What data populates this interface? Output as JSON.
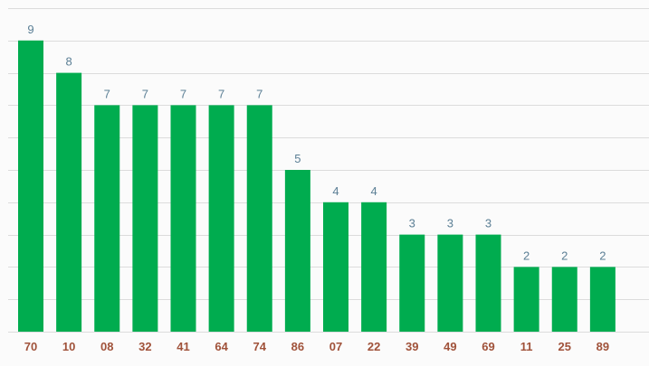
{
  "chart_data": {
    "type": "bar",
    "categories": [
      "70",
      "10",
      "08",
      "32",
      "41",
      "64",
      "74",
      "86",
      "07",
      "22",
      "39",
      "49",
      "69",
      "11",
      "25",
      "89"
    ],
    "values": [
      9,
      8,
      7,
      7,
      7,
      7,
      7,
      5,
      4,
      4,
      3,
      3,
      3,
      2,
      2,
      2
    ],
    "title": "",
    "xlabel": "",
    "ylabel": "",
    "ylim": [
      0,
      10
    ],
    "grid": true,
    "legend": "none",
    "data_labels": true
  },
  "colors": {
    "bar": "#00ac4f",
    "grid": "#dcdcdc",
    "value_label": "#5b7f95",
    "category_label": "#a0523a",
    "background": "#fbfbfb"
  }
}
